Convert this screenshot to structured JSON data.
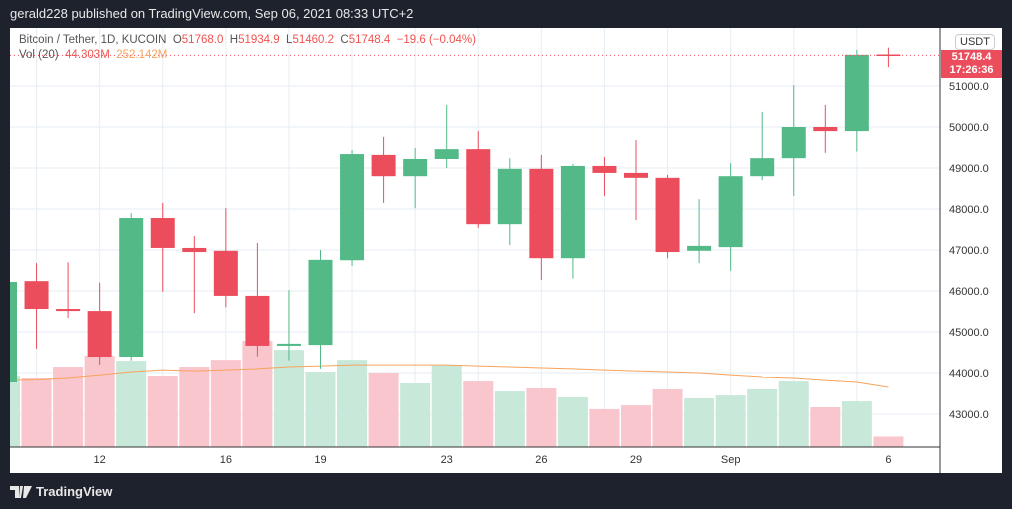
{
  "header": {
    "published": "gerald228 published on TradingView.com, Sep 06, 2021 08:33 UTC+2"
  },
  "legend": {
    "symbol": "Bitcoin / Tether, 1D, KUCOIN",
    "o_label": "O",
    "o": "51768.0",
    "h_label": "H",
    "h": "51934.9",
    "l_label": "L",
    "l": "51460.2",
    "c_label": "C",
    "c": "51748.4",
    "change": "−19.6 (−0.04%)",
    "vol_label": "Vol (20)",
    "vol": "44.303M",
    "vol_ma": "252.142M"
  },
  "price_label": {
    "currency": "USDT",
    "last": "51748.4",
    "countdown": "17:26:36"
  },
  "footer": {
    "brand": "TradingView"
  },
  "colors": {
    "up": "#26a69a",
    "up_body": "#53b987",
    "down": "#eb4d5c",
    "vol_up": "#c8e8da",
    "vol_down": "#f8c6cc",
    "ma": "#f7a35c"
  },
  "chart_data": {
    "type": "candlestick",
    "ylim": [
      42300,
      52300
    ],
    "yticks": [
      43000,
      44000,
      45000,
      46000,
      47000,
      48000,
      49000,
      50000,
      51000
    ],
    "ytick_labels": [
      "43000.0",
      "44000.0",
      "45000.0",
      "46000.0",
      "47000.0",
      "48000.0",
      "49000.0",
      "50000.0",
      "51000.0"
    ],
    "xtick_labels": [
      {
        "i": 3,
        "label": "12"
      },
      {
        "i": 7,
        "label": "16"
      },
      {
        "i": 10,
        "label": "19"
      },
      {
        "i": 14,
        "label": "23"
      },
      {
        "i": 17,
        "label": "26"
      },
      {
        "i": 20,
        "label": "29"
      },
      {
        "i": 23,
        "label": "Sep"
      },
      {
        "i": 28,
        "label": "6"
      }
    ],
    "candles": [
      [
        43780,
        46300,
        43700,
        46220
      ],
      [
        46240,
        46680,
        44590,
        45560
      ],
      [
        45560,
        46700,
        45340,
        45510
      ],
      [
        45510,
        46200,
        44200,
        44390
      ],
      [
        44390,
        47900,
        44300,
        47780
      ],
      [
        47780,
        48150,
        45980,
        47050
      ],
      [
        47050,
        47340,
        45460,
        46950
      ],
      [
        46980,
        48020,
        45600,
        45880
      ],
      [
        45880,
        47170,
        44400,
        44660
      ],
      [
        44660,
        46020,
        44300,
        44710
      ],
      [
        44680,
        47000,
        44100,
        46760
      ],
      [
        46750,
        49440,
        46610,
        49340
      ],
      [
        49320,
        49760,
        48150,
        48800
      ],
      [
        48800,
        49490,
        48020,
        49220
      ],
      [
        49220,
        50540,
        49000,
        49460
      ],
      [
        49460,
        49900,
        47540,
        47630
      ],
      [
        47630,
        49240,
        47120,
        48980
      ],
      [
        48980,
        49320,
        46270,
        46800
      ],
      [
        46800,
        49100,
        46300,
        49050
      ],
      [
        49050,
        49270,
        48320,
        48880
      ],
      [
        48880,
        49680,
        47730,
        48760
      ],
      [
        48760,
        48830,
        46800,
        46950
      ],
      [
        46980,
        48240,
        46680,
        47100
      ],
      [
        47070,
        49120,
        46490,
        48800
      ],
      [
        48800,
        50370,
        48700,
        49240
      ],
      [
        49240,
        51020,
        48320,
        50000
      ],
      [
        50000,
        50540,
        49370,
        49900
      ],
      [
        49900,
        51880,
        49400,
        51760
      ],
      [
        51768.0,
        51934.9,
        51460.2,
        51748.4
      ]
    ],
    "volume_M": [
      298,
      290,
      336,
      382,
      361,
      298,
      336,
      365,
      445,
      407,
      315,
      365,
      311,
      269,
      344,
      277,
      235,
      248,
      210,
      160,
      176,
      244,
      206,
      218,
      244,
      277,
      168,
      193,
      44.303
    ],
    "volume_ma_M": [
      281,
      283,
      290,
      302,
      315,
      323,
      319,
      323,
      328,
      336,
      340,
      344,
      344,
      344,
      344,
      340,
      336,
      332,
      328,
      323,
      319,
      315,
      311,
      302,
      294,
      290,
      281,
      273,
      252.142
    ]
  }
}
